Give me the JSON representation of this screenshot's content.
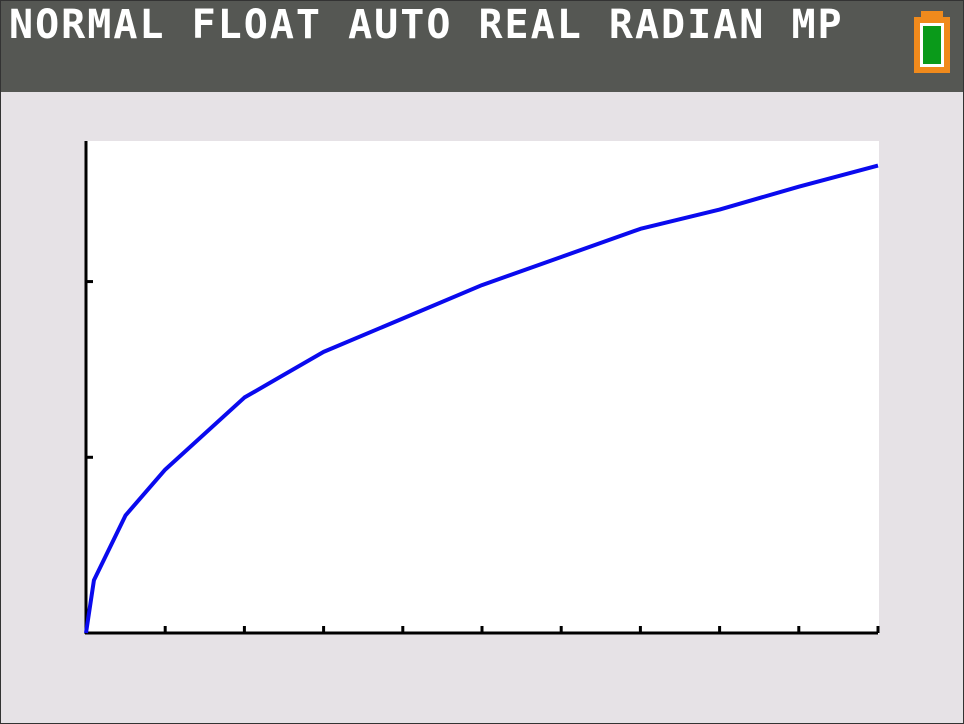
{
  "status_bar": {
    "text": "NORMAL FLOAT AUTO REAL RADIAN MP"
  },
  "chart_data": {
    "type": "line",
    "x": [
      0,
      0.1,
      0.5,
      1,
      2,
      3,
      4,
      5,
      6,
      7,
      8,
      9,
      10
    ],
    "series": [
      {
        "color": "#0a0aee",
        "values": [
          0,
          0.3,
          0.67,
          0.93,
          1.34,
          1.6,
          1.79,
          1.98,
          2.14,
          2.3,
          2.41,
          2.54,
          2.66
        ]
      }
    ],
    "xlim": [
      0,
      10
    ],
    "ylim": [
      0,
      2.8
    ],
    "xticks": [
      1,
      2,
      3,
      4,
      5,
      6,
      7,
      8,
      9,
      10
    ],
    "yticks": [
      1,
      2
    ]
  }
}
